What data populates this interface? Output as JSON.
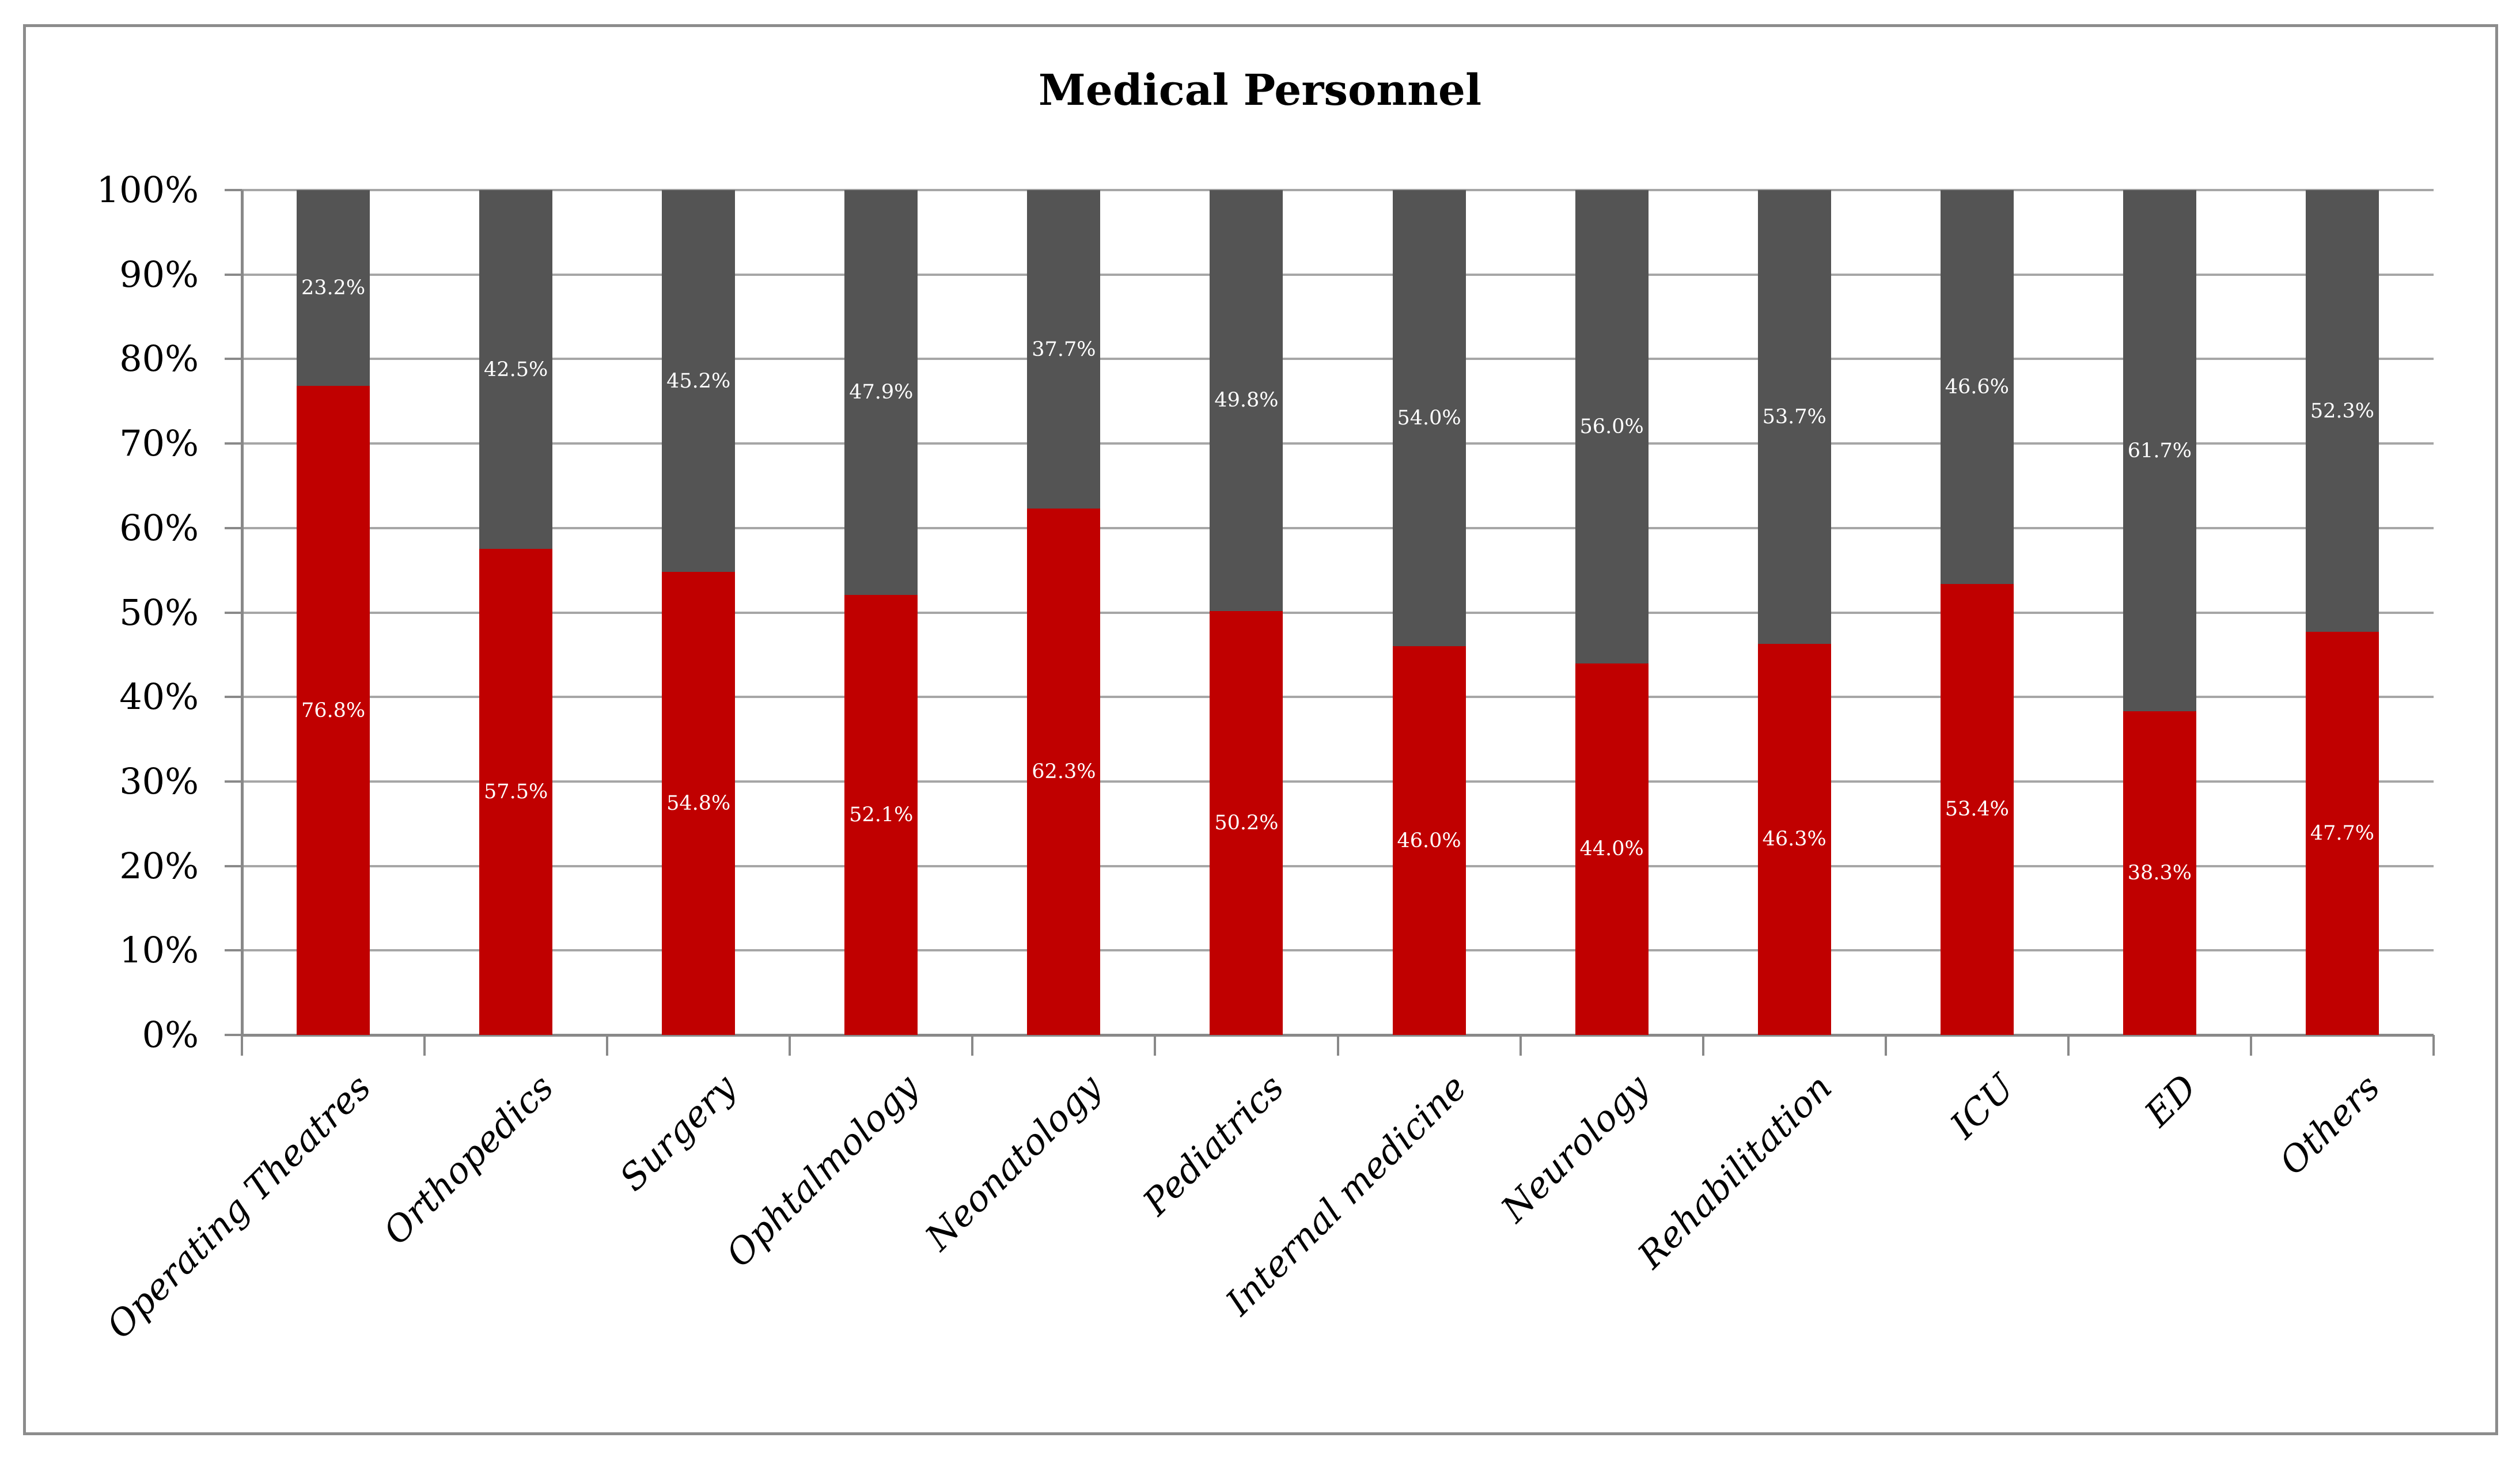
{
  "figure": {
    "background": "#FFFFFF",
    "border_color": "#8C8C8C"
  },
  "chart_data": {
    "type": "bar",
    "subtype": "stacked-100-percent-column",
    "title": "Medical Personnel",
    "categories": [
      "Operating Theatres",
      "Orthopedics",
      "Surgery",
      "Ophtalmology",
      "Neonatology",
      "Pediatrics",
      "Internal medicine",
      "Neurology",
      "Rehabilitation",
      "ICU",
      "ED",
      "Others"
    ],
    "series": [
      {
        "name": "red",
        "position": "bottom",
        "color": "#C00000",
        "values": [
          76.8,
          57.5,
          54.8,
          52.1,
          62.3,
          50.2,
          46.0,
          44.0,
          46.3,
          53.4,
          38.3,
          47.7
        ],
        "labels": [
          "76.8%",
          "57.5%",
          "54.8%",
          "52.1%",
          "62.3%",
          "50.2%",
          "46.0%",
          "44.0%",
          "46.3%",
          "53.4%",
          "38.3%",
          "47.7%"
        ]
      },
      {
        "name": "gray",
        "position": "top",
        "color": "#545454",
        "values": [
          23.2,
          42.5,
          45.2,
          47.9,
          37.7,
          49.8,
          54.0,
          56.0,
          53.7,
          46.6,
          61.7,
          52.3
        ],
        "labels": [
          "23.2%",
          "42.5%",
          "45.2%",
          "47.9%",
          "37.7%",
          "49.8%",
          "54.0%",
          "56.0%",
          "53.7%",
          "46.6%",
          "61.7%",
          "52.3%"
        ]
      }
    ],
    "y_axis": {
      "ticks": [
        "100%",
        "90%",
        "80%",
        "70%",
        "60%",
        "50%",
        "40%",
        "30%",
        "20%",
        "10%",
        "0%"
      ],
      "min": 0,
      "max": 100
    },
    "grid": {
      "show": true,
      "color": "#A6A6A6"
    },
    "axis_color": "#898989",
    "data_label_color": "#FFFFFF",
    "x_label_rotation_deg": 45,
    "legend": {
      "show": false
    }
  }
}
